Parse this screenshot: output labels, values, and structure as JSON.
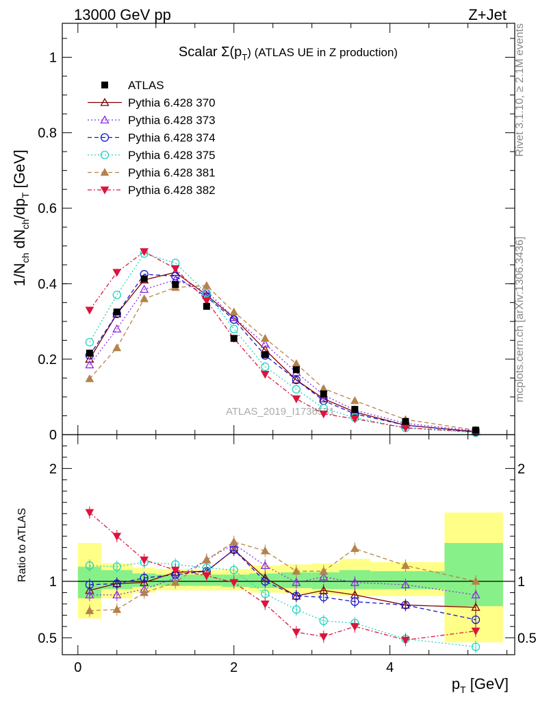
{
  "header": {
    "left": "13000 GeV pp",
    "right": "Z+Jet",
    "side_rivet": "Rivet 3.1.10, ≥ 2.1M events",
    "side_mcplots": "mcplots.cern.ch [arXiv:1306.3436]",
    "watermark": "ATLAS_2019_I1736531"
  },
  "chart_data": [
    {
      "type": "line",
      "title": "Scalar Σ(p_T) (ATLAS UE in Z production)",
      "title_parts": {
        "pre": "Scalar Σ(p",
        "sub": "T",
        "post": ") (ATLAS UE in Z production)"
      },
      "ylabel": "1/N_ch dN_ch/dp_T [GeV]",
      "ylabel_parts": {
        "a": "1/N",
        "a_sub": "ch",
        "b": " dN",
        "b_sub": "ch",
        "c": "/dp",
        "c_sub": "T",
        "d": " [GeV]"
      },
      "xlim": [
        -0.2,
        5.6
      ],
      "ylim": [
        0,
        1.09
      ],
      "yticks": [
        0,
        0.2,
        0.4,
        0.6,
        0.8,
        1
      ],
      "yticklabels": [
        "0",
        "0.2",
        "0.4",
        "0.6",
        "0.8",
        "1"
      ],
      "x": [
        0.15,
        0.5,
        0.85,
        1.25,
        1.65,
        2.0,
        2.4,
        2.8,
        3.15,
        3.55,
        4.2,
        5.1
      ],
      "data": {
        "name": "ATLAS",
        "values": [
          0.216,
          0.325,
          0.413,
          0.398,
          0.34,
          0.255,
          0.212,
          0.172,
          0.108,
          0.067,
          0.035,
          0.012
        ]
      },
      "series": [
        {
          "name": "Pythia 6.428 370",
          "color": "#800000",
          "dash": "",
          "marker": "tri-up-open",
          "values": [
            0.2,
            0.32,
            0.41,
            0.43,
            0.37,
            0.31,
            0.225,
            0.145,
            0.095,
            0.06,
            0.025,
            0.008
          ]
        },
        {
          "name": "Pythia 6.428 373",
          "color": "#8a2be2",
          "dash": "2,3",
          "marker": "tri-up-open",
          "values": [
            0.185,
            0.28,
            0.385,
            0.41,
            0.38,
            0.31,
            0.24,
            0.165,
            0.105,
            0.065,
            0.03,
            0.01
          ]
        },
        {
          "name": "Pythia 6.428 374",
          "color": "#1515cc",
          "dash": "6,4",
          "marker": "circle-open",
          "values": [
            0.21,
            0.32,
            0.425,
            0.42,
            0.365,
            0.305,
            0.21,
            0.145,
            0.09,
            0.055,
            0.025,
            0.007
          ]
        },
        {
          "name": "Pythia 6.428 375",
          "color": "#20d3c0",
          "dash": "2,3",
          "marker": "circle-open",
          "values": [
            0.245,
            0.37,
            0.48,
            0.455,
            0.375,
            0.28,
            0.18,
            0.12,
            0.07,
            0.045,
            0.018,
            0.005
          ]
        },
        {
          "name": "Pythia 6.428 381",
          "color": "#b5824a",
          "dash": "6,4",
          "marker": "tri-up-filled",
          "values": [
            0.148,
            0.23,
            0.36,
            0.39,
            0.395,
            0.325,
            0.255,
            0.188,
            0.122,
            0.09,
            0.04,
            0.012
          ]
        },
        {
          "name": "Pythia 6.428 382",
          "color": "#dc143c",
          "dash": "6,3,2,3",
          "marker": "tri-down-filled",
          "values": [
            0.33,
            0.43,
            0.485,
            0.44,
            0.355,
            0.255,
            0.16,
            0.095,
            0.055,
            0.042,
            0.018,
            0.007
          ]
        }
      ]
    },
    {
      "type": "line",
      "ylabel": "Ratio to ATLAS",
      "xlabel": "p_T [GeV]",
      "xlabel_parts": {
        "a": "p",
        "sub": "T",
        "b": " [GeV]"
      },
      "xlim": [
        -0.2,
        5.6
      ],
      "ylim": [
        0.35,
        2.3
      ],
      "xticks": [
        0,
        2,
        4
      ],
      "xticklabels": [
        "0",
        "2",
        "4"
      ],
      "yticks": [
        0.5,
        1,
        2
      ],
      "yticklabels": [
        "0.5",
        "1",
        "2"
      ],
      "bands": {
        "x_edges": [
          0.0,
          0.3,
          0.7,
          1.0,
          1.45,
          1.85,
          2.2,
          2.6,
          3.0,
          3.35,
          3.75,
          4.7,
          5.45
        ],
        "green_low": [
          0.85,
          0.93,
          0.95,
          0.96,
          0.96,
          0.95,
          0.94,
          0.94,
          0.93,
          0.93,
          0.93,
          0.78
        ],
        "green_high": [
          1.13,
          1.1,
          1.07,
          1.06,
          1.06,
          1.06,
          1.07,
          1.08,
          1.08,
          1.1,
          1.09,
          1.34
        ],
        "yellow_low": [
          0.67,
          0.85,
          0.9,
          0.92,
          0.92,
          0.92,
          0.9,
          0.89,
          0.88,
          0.87,
          0.87,
          0.46
        ],
        "yellow_high": [
          1.34,
          1.16,
          1.12,
          1.11,
          1.1,
          1.11,
          1.14,
          1.15,
          1.16,
          1.2,
          1.17,
          1.61
        ]
      },
      "series": [
        {
          "name": "Pythia 6.428 370",
          "values": [
            0.92,
            0.98,
            0.99,
            1.08,
            1.09,
            1.28,
            1.03,
            0.87,
            0.92,
            0.88,
            0.79,
            0.77
          ]
        },
        {
          "name": "Pythia 6.428 373",
          "values": [
            0.88,
            0.88,
            0.93,
            1.03,
            1.19,
            1.33,
            1.14,
            0.99,
            1.04,
            0.99,
            0.97,
            0.88
          ]
        },
        {
          "name": "Pythia 6.428 374",
          "values": [
            0.97,
            0.98,
            1.03,
            1.06,
            1.09,
            1.28,
            1.0,
            0.87,
            0.86,
            0.82,
            0.79,
            0.66
          ]
        },
        {
          "name": "Pythia 6.428 375",
          "values": [
            1.14,
            1.13,
            1.17,
            1.15,
            1.12,
            1.1,
            0.89,
            0.75,
            0.65,
            0.63,
            0.49,
            0.42
          ]
        },
        {
          "name": "Pythia 6.428 381",
          "values": [
            0.74,
            0.75,
            0.9,
            0.99,
            1.19,
            1.35,
            1.27,
            1.09,
            1.09,
            1.29,
            1.14,
            1.0
          ]
        },
        {
          "name": "Pythia 6.428 382",
          "values": [
            1.61,
            1.4,
            1.19,
            1.1,
            1.05,
            0.99,
            0.8,
            0.55,
            0.51,
            0.6,
            0.48,
            0.56
          ]
        }
      ]
    }
  ]
}
